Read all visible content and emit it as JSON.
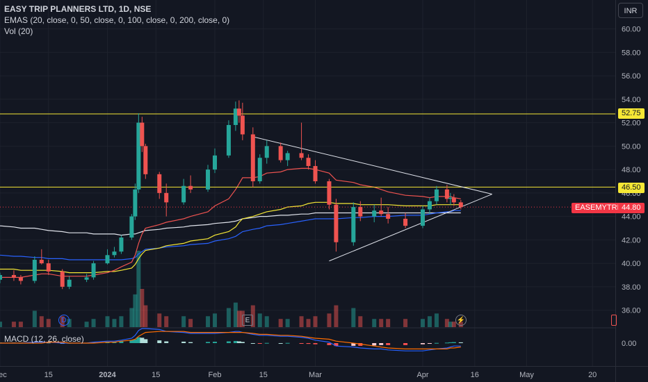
{
  "header": {
    "symbol_title": "EASY TRIP PLANNERS LTD, 1D, NSE",
    "ema_legend": "EMAS (20, close, 0, 50, close, 0, 100, close, 0, 200, close, 0)",
    "vol_legend": "Vol (20)",
    "macd_legend": "MACD (12, 26, close)",
    "currency": "INR"
  },
  "price_axis": {
    "ticks": [
      "60.00",
      "58.00",
      "56.00",
      "54.00",
      "52.00",
      "50.00",
      "48.00",
      "46.00",
      "44.00",
      "42.00",
      "40.00",
      "38.00",
      "36.00"
    ],
    "macd_tick": "0.00"
  },
  "price_tags": {
    "resistance_high": "52.75",
    "resistance_low": "46.50",
    "symbol_name": "EASEMYTRIP",
    "last_price": "44.80"
  },
  "time_axis": {
    "labels": [
      "Dec",
      "15",
      "2024",
      "15",
      "Feb",
      "15",
      "Mar",
      "Apr",
      "16",
      "May",
      "20"
    ]
  },
  "events": {
    "dividend": "D",
    "earnings": "E",
    "flash": "⚡"
  },
  "colors": {
    "background": "#131722",
    "up": "#26a69a",
    "down": "#ef5350",
    "ema20": "#ef5350",
    "ema50": "#f5e735",
    "ema100": "#2962ff",
    "ema200": "#e0e3eb",
    "hline": "#f5e735",
    "trendline": "#e0e3eb",
    "macd_line": "#2962ff",
    "signal_line": "#ff6d00"
  },
  "chart_data": {
    "type": "candlestick",
    "title": "EASY TRIP PLANNERS LTD, 1D, NSE",
    "y_range": [
      35,
      61
    ],
    "horizontal_lines": [
      52.75,
      46.5
    ],
    "last_price": 44.8,
    "x_dates": [
      "2023-11-29",
      "2023-12-01",
      "2023-12-05",
      "2023-12-07",
      "2023-12-11",
      "2023-12-13",
      "2023-12-15",
      "2023-12-19",
      "2023-12-21",
      "2023-12-26",
      "2023-12-28",
      "2024-01-01",
      "2024-01-03",
      "2024-01-05",
      "2024-01-08",
      "2024-01-09",
      "2024-01-10",
      "2024-01-11",
      "2024-01-12",
      "2024-01-16",
      "2024-01-18",
      "2024-01-23",
      "2024-01-25",
      "2024-01-30",
      "2024-02-01",
      "2024-02-05",
      "2024-02-07",
      "2024-02-08",
      "2024-02-09",
      "2024-02-12",
      "2024-02-14",
      "2024-02-16",
      "2024-02-20",
      "2024-02-22",
      "2024-02-26",
      "2024-02-28",
      "2024-03-01",
      "2024-03-05",
      "2024-03-07",
      "2024-03-12",
      "2024-03-14",
      "2024-03-18",
      "2024-03-20",
      "2024-03-22",
      "2024-03-27",
      "2024-04-01",
      "2024-04-03",
      "2024-04-05",
      "2024-04-08",
      "2024-04-09",
      "2024-04-10",
      "2024-04-12"
    ],
    "ohlc": [
      [
        38.4,
        38.9,
        38.0,
        38.6
      ],
      [
        38.6,
        39.2,
        38.3,
        39.0
      ],
      [
        39.0,
        39.4,
        38.5,
        38.8
      ],
      [
        38.8,
        39.0,
        38.2,
        38.5
      ],
      [
        38.5,
        40.6,
        38.3,
        40.3
      ],
      [
        40.3,
        41.2,
        39.9,
        40.0
      ],
      [
        40.0,
        40.3,
        39.0,
        39.3
      ],
      [
        39.3,
        39.5,
        37.8,
        38.0
      ],
      [
        38.0,
        38.9,
        37.8,
        38.6
      ],
      [
        38.6,
        39.1,
        38.4,
        38.8
      ],
      [
        38.8,
        40.2,
        38.6,
        40.0
      ],
      [
        40.0,
        41.2,
        39.9,
        40.7
      ],
      [
        40.7,
        41.4,
        40.5,
        41.0
      ],
      [
        41.0,
        42.4,
        40.8,
        42.2
      ],
      [
        42.2,
        44.2,
        42.0,
        44.0
      ],
      [
        44.0,
        46.8,
        43.7,
        46.3
      ],
      [
        46.3,
        52.8,
        46.0,
        52.0
      ],
      [
        52.0,
        52.5,
        49.5,
        50.0
      ],
      [
        50.0,
        50.2,
        47.2,
        47.6
      ],
      [
        47.6,
        47.8,
        45.5,
        46.0
      ],
      [
        46.0,
        46.8,
        44.0,
        45.2
      ],
      [
        45.2,
        47.2,
        45.0,
        46.6
      ],
      [
        46.6,
        47.5,
        46.0,
        46.3
      ],
      [
        46.3,
        48.4,
        46.1,
        48.0
      ],
      [
        48.0,
        49.8,
        47.7,
        49.2
      ],
      [
        49.2,
        52.2,
        49.0,
        51.8
      ],
      [
        51.8,
        53.8,
        51.3,
        53.2
      ],
      [
        53.2,
        53.9,
        52.0,
        52.6
      ],
      [
        52.6,
        53.7,
        50.5,
        51.0
      ],
      [
        51.0,
        51.6,
        46.5,
        47.0
      ],
      [
        47.0,
        49.3,
        46.8,
        49.0
      ],
      [
        49.0,
        50.5,
        48.5,
        50.0
      ],
      [
        50.0,
        50.3,
        48.6,
        48.8
      ],
      [
        48.8,
        49.6,
        48.3,
        49.4
      ],
      [
        49.4,
        52.0,
        48.8,
        49.0
      ],
      [
        49.0,
        49.3,
        48.0,
        48.3
      ],
      [
        48.3,
        48.8,
        46.8,
        47.0
      ],
      [
        47.0,
        47.2,
        44.6,
        45.0
      ],
      [
        45.0,
        45.5,
        41.0,
        41.8
      ],
      [
        41.8,
        45.2,
        41.5,
        44.8
      ],
      [
        44.8,
        45.3,
        43.6,
        44.0
      ],
      [
        44.0,
        45.0,
        43.5,
        44.5
      ],
      [
        44.5,
        45.6,
        44.0,
        44.2
      ],
      [
        44.2,
        44.8,
        43.4,
        43.8
      ],
      [
        43.8,
        44.3,
        43.0,
        43.2
      ],
      [
        43.2,
        44.9,
        43.0,
        44.6
      ],
      [
        44.6,
        45.6,
        44.2,
        45.3
      ],
      [
        45.3,
        46.6,
        45.0,
        46.3
      ],
      [
        46.3,
        46.7,
        45.2,
        45.5
      ],
      [
        45.5,
        46.0,
        45.0,
        45.6
      ],
      [
        45.6,
        45.9,
        44.9,
        45.2
      ],
      [
        45.2,
        45.4,
        44.6,
        44.8
      ]
    ],
    "volume": [
      3,
      2,
      2,
      2,
      6,
      4,
      3,
      4,
      3,
      2,
      3,
      4,
      3,
      4,
      7,
      12,
      28,
      14,
      8,
      5,
      4,
      4,
      3,
      4,
      5,
      7,
      9,
      6,
      6,
      8,
      5,
      4,
      3,
      3,
      4,
      3,
      4,
      5,
      8,
      7,
      4,
      3,
      3,
      3,
      3,
      3,
      4,
      5,
      3,
      2,
      2,
      2
    ],
    "ema": {
      "ema20": [
        38.8,
        38.8,
        38.8,
        38.8,
        39.0,
        39.1,
        39.1,
        38.9,
        38.9,
        38.9,
        39.0,
        39.2,
        39.4,
        39.7,
        40.1,
        40.7,
        41.7,
        42.5,
        43.0,
        43.3,
        43.5,
        43.8,
        44.0,
        44.4,
        44.9,
        45.5,
        46.3,
        46.8,
        47.3,
        47.3,
        47.4,
        47.7,
        47.8,
        48.0,
        48.1,
        48.1,
        48.0,
        47.7,
        47.1,
        46.9,
        46.7,
        46.5,
        46.3,
        46.1,
        45.8,
        45.7,
        45.6,
        45.7,
        45.7,
        45.7,
        45.6,
        45.5
      ],
      "ema50": [
        39.6,
        39.5,
        39.5,
        39.4,
        39.4,
        39.4,
        39.4,
        39.3,
        39.2,
        39.2,
        39.2,
        39.3,
        39.3,
        39.4,
        39.6,
        39.9,
        40.4,
        40.8,
        41.1,
        41.3,
        41.5,
        41.7,
        41.9,
        42.1,
        42.4,
        42.7,
        43.1,
        43.5,
        43.8,
        44.0,
        44.2,
        44.4,
        44.6,
        44.8,
        44.9,
        45.1,
        45.2,
        45.2,
        45.1,
        45.1,
        45.0,
        45.0,
        45.0,
        45.0,
        44.9,
        44.9,
        44.9,
        45.0,
        45.0,
        45.0,
        45.0,
        45.0
      ],
      "ema100": [
        40.8,
        40.7,
        40.6,
        40.6,
        40.5,
        40.5,
        40.4,
        40.4,
        40.3,
        40.3,
        40.3,
        40.3,
        40.3,
        40.3,
        40.4,
        40.5,
        40.8,
        41.0,
        41.2,
        41.3,
        41.4,
        41.5,
        41.6,
        41.7,
        41.9,
        42.1,
        42.3,
        42.5,
        42.7,
        42.9,
        43.0,
        43.2,
        43.3,
        43.4,
        43.6,
        43.7,
        43.8,
        43.8,
        43.8,
        43.9,
        43.9,
        44.0,
        44.0,
        44.0,
        44.1,
        44.1,
        44.2,
        44.3,
        44.4,
        44.4,
        44.5,
        44.5
      ],
      "ema200": [
        43.3,
        43.2,
        43.1,
        43.0,
        43.0,
        42.9,
        42.8,
        42.7,
        42.6,
        42.6,
        42.5,
        42.5,
        42.5,
        42.4,
        42.5,
        42.5,
        42.6,
        42.7,
        42.8,
        42.9,
        43.0,
        43.1,
        43.2,
        43.3,
        43.4,
        43.5,
        43.6,
        43.7,
        43.8,
        43.9,
        44.0,
        44.0,
        44.1,
        44.1,
        44.2,
        44.2,
        44.3,
        44.3,
        44.3,
        44.3,
        44.3,
        44.3,
        44.3,
        44.3,
        44.3,
        44.3,
        44.3,
        44.3,
        44.3,
        44.3,
        44.3,
        44.3
      ]
    },
    "macd": {
      "histogram": [
        0.05,
        0.06,
        0.05,
        0.03,
        0.1,
        0.1,
        0.06,
        0.0,
        0.02,
        0.03,
        0.08,
        0.12,
        0.14,
        0.2,
        0.28,
        0.38,
        0.6,
        0.55,
        0.4,
        0.28,
        0.18,
        0.15,
        0.1,
        0.12,
        0.14,
        0.18,
        0.22,
        0.18,
        0.12,
        0.0,
        -0.02,
        0.02,
        0.0,
        0.02,
        -0.03,
        -0.08,
        -0.12,
        -0.2,
        -0.3,
        -0.28,
        -0.28,
        -0.24,
        -0.2,
        -0.2,
        -0.2,
        -0.12,
        -0.06,
        0.02,
        0.05,
        0.08,
        0.1,
        0.08
      ],
      "macd_line": [
        0.0,
        0.0,
        0.0,
        0.0,
        0.1,
        0.1,
        0.1,
        0.0,
        0.0,
        0.0,
        0.1,
        0.2,
        0.2,
        0.3,
        0.5,
        0.8,
        1.3,
        1.5,
        1.5,
        1.4,
        1.2,
        1.1,
        1.0,
        1.0,
        1.0,
        1.1,
        1.2,
        1.2,
        1.1,
        0.9,
        0.8,
        0.8,
        0.7,
        0.7,
        0.6,
        0.5,
        0.3,
        0.1,
        -0.3,
        -0.4,
        -0.5,
        -0.6,
        -0.6,
        -0.7,
        -0.8,
        -0.8,
        -0.7,
        -0.6,
        -0.5,
        -0.4,
        -0.3,
        -0.3
      ],
      "signal_line": [
        0.0,
        0.0,
        0.0,
        0.0,
        0.0,
        0.0,
        0.1,
        0.1,
        0.0,
        0.0,
        0.0,
        0.1,
        0.1,
        0.2,
        0.3,
        0.4,
        0.7,
        0.9,
        1.1,
        1.2,
        1.2,
        1.2,
        1.1,
        1.1,
        1.1,
        1.1,
        1.1,
        1.1,
        1.1,
        1.0,
        0.9,
        0.9,
        0.8,
        0.8,
        0.7,
        0.6,
        0.5,
        0.4,
        0.2,
        0.0,
        -0.1,
        -0.3,
        -0.4,
        -0.5,
        -0.6,
        -0.6,
        -0.6,
        -0.6,
        -0.6,
        -0.5,
        -0.5,
        -0.4
      ]
    }
  }
}
